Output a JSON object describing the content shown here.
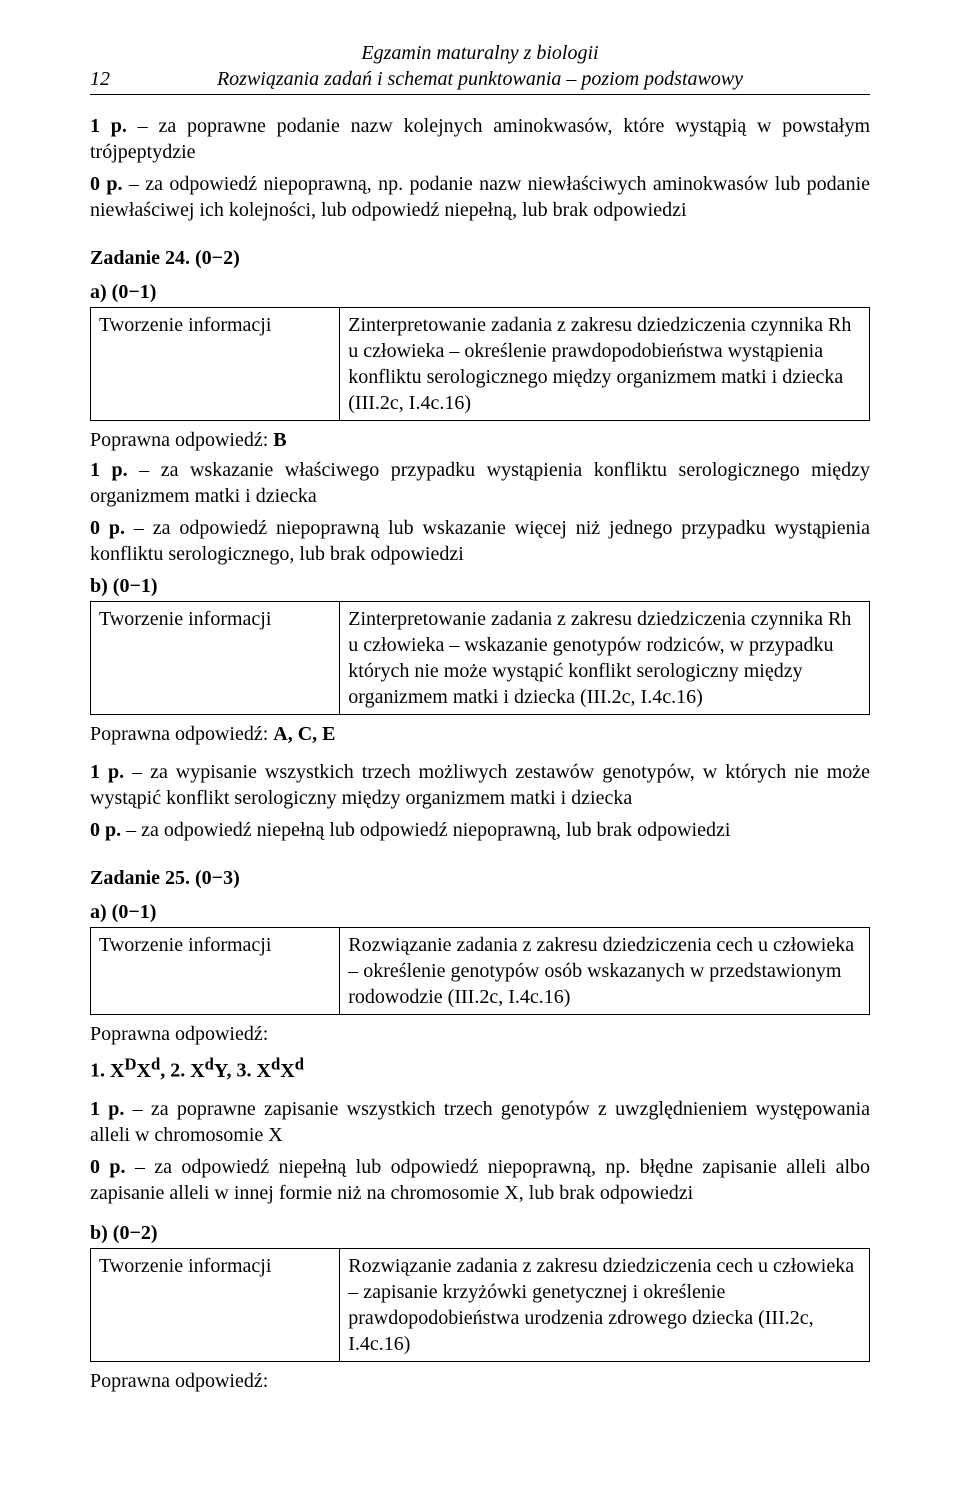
{
  "header": {
    "page_number": "12",
    "title_line1": "Egzamin maturalny z biologii",
    "title_line2": "Rozwiązania zadań i schemat punktowania – poziom podstawowy"
  },
  "top": {
    "p1_label": "1 p.",
    "p1_text": " – za poprawne podanie nazw kolejnych aminokwasów, które wystąpią w powstałym trójpeptydzie",
    "p0_label": "0 p.",
    "p0_text": " – za odpowiedź niepoprawną, np. podanie nazw niewłaściwych aminokwasów lub podanie niewłaściwej ich kolejności, lub odpowiedź niepełną, lub brak odpowiedzi"
  },
  "z24": {
    "title": "Zadanie 24. (0−2)",
    "a_label": "a) (0−1)",
    "a_left": "Tworzenie informacji",
    "a_right": "Zinterpretowanie zadania z zakresu dziedziczenia czynnika Rh u człowieka – określenie prawdopodobieństwa wystąpienia konfliktu serologicznego między organizmem matki i dziecka (III.2c, I.4c.16)",
    "a_answer_label": "Poprawna odpowiedź: ",
    "a_answer_value": "B",
    "a_p1_label": "1 p.",
    "a_p1_text": " – za wskazanie właściwego przypadku wystąpienia konfliktu serologicznego między organizmem matki i dziecka",
    "a_p0_label": "0 p.",
    "a_p0_text": " – za odpowiedź niepoprawną lub wskazanie więcej niż jednego przypadku wystąpienia konfliktu serologicznego, lub brak odpowiedzi",
    "b_label": "b) (0−1)",
    "b_left": "Tworzenie informacji",
    "b_right": "Zinterpretowanie zadania z zakresu dziedziczenia czynnika Rh u człowieka – wskazanie genotypów rodziców, w przypadku których nie może wystąpić konflikt serologiczny między organizmem matki i dziecka (III.2c, I.4c.16)",
    "b_answer_label": "Poprawna odpowiedź: ",
    "b_answer_value": "A, C, E",
    "b_p1_label": "1 p.",
    "b_p1_text": " – za wypisanie wszystkich trzech możliwych zestawów genotypów, w których nie może wystąpić konflikt serologiczny między organizmem matki i dziecka",
    "b_p0_label": "0 p.",
    "b_p0_text": " – za odpowiedź niepełną lub odpowiedź niepoprawną, lub brak odpowiedzi"
  },
  "z25": {
    "title": "Zadanie 25. (0−3)",
    "a_label": "a) (0−1)",
    "a_left": "Tworzenie informacji",
    "a_right": "Rozwiązanie zadania z zakresu dziedziczenia cech u człowieka – określenie genotypów osób wskazanych w przedstawionym rodowodzie (III.2c, I.4c.16)",
    "a_answer_label": "Poprawna odpowiedź:",
    "geno": {
      "n1": "1. ",
      "g1_html": "X<sup>D</sup>X<sup>d</sup>",
      "sep1": ",    ",
      "n2": "2. ",
      "g2_html": "X<sup>d</sup>Y",
      "sep2": ",    ",
      "n3": "3. ",
      "g3_html": "X<sup>d</sup>X<sup>d</sup>"
    },
    "a_p1_label": "1 p.",
    "a_p1_text": " – za poprawne zapisanie wszystkich trzech genotypów z uwzględnieniem występowania alleli w chromosomie X",
    "a_p0_label": "0 p.",
    "a_p0_text": " – za odpowiedź niepełną lub odpowiedź niepoprawną, np. błędne zapisanie alleli albo zapisanie alleli w innej formie niż na chromosomie X, lub brak odpowiedzi",
    "b_label": "b) (0−2)",
    "b_left": "Tworzenie informacji",
    "b_right": "Rozwiązanie zadania z zakresu dziedziczenia cech u człowieka – zapisanie krzyżówki genetycznej i określenie prawdopodobieństwa urodzenia zdrowego dziecka (III.2c, I.4c.16)",
    "b_answer_label": "Poprawna odpowiedź:"
  }
}
